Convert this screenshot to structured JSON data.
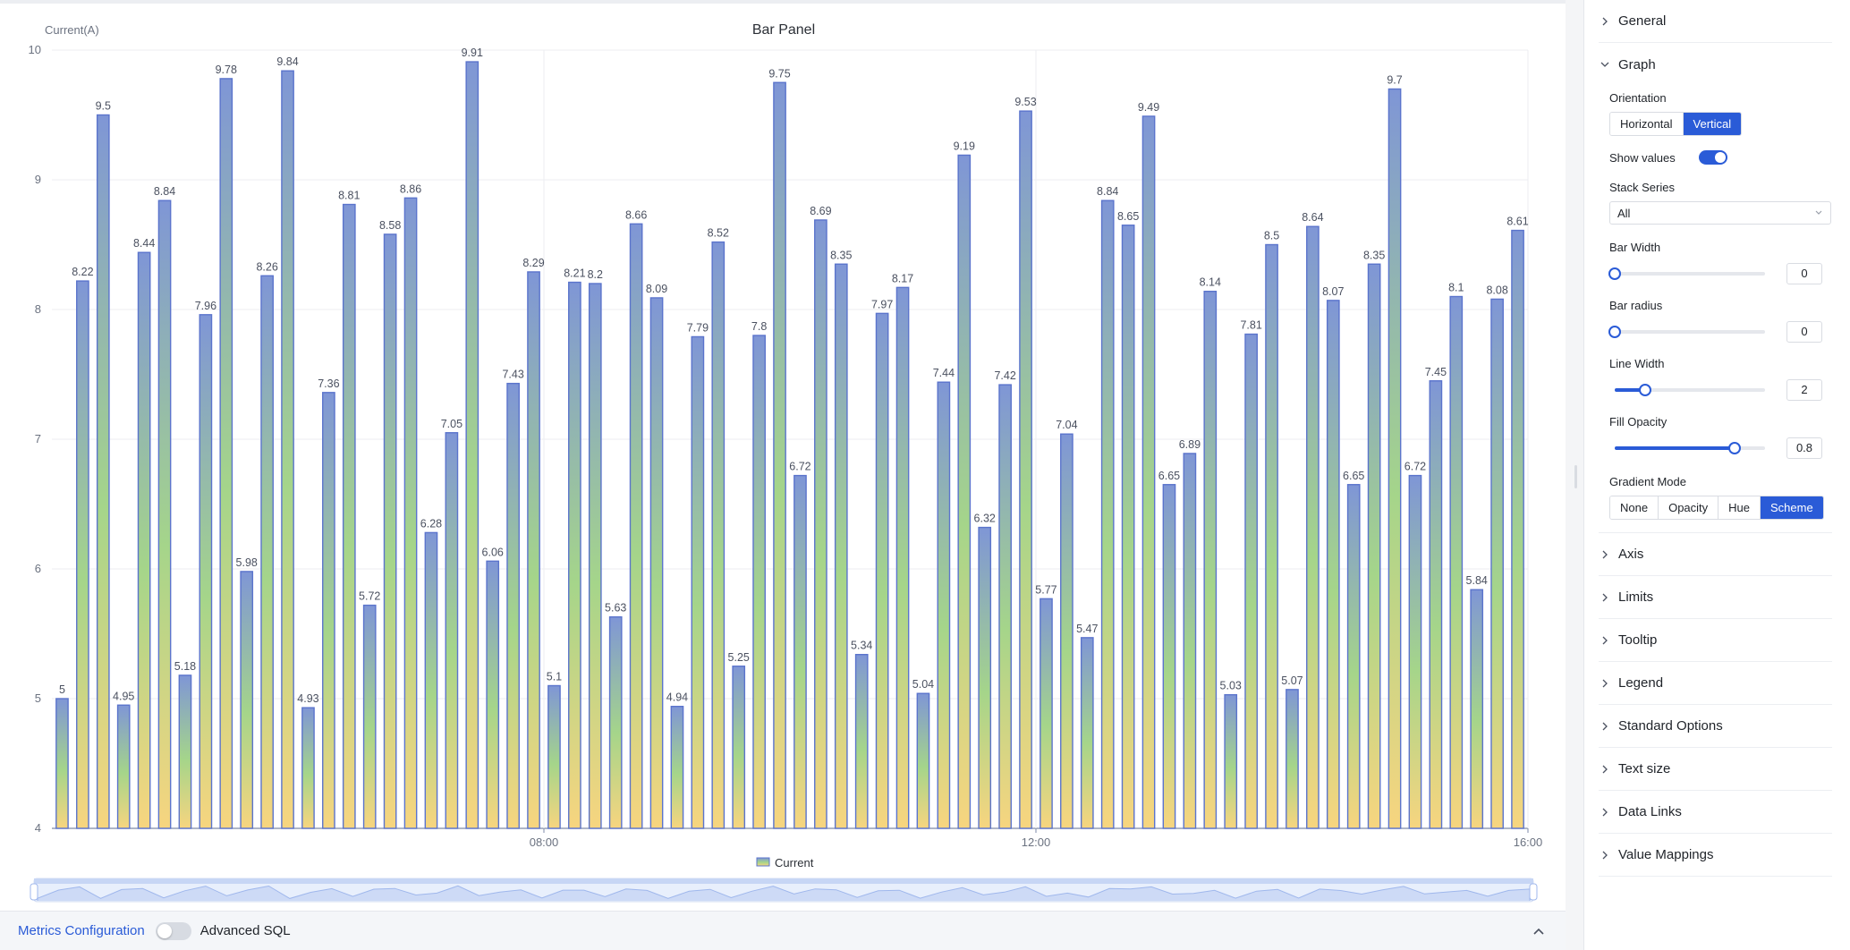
{
  "chart_panel": {
    "chart_data": {
      "type": "bar",
      "title": "Bar Panel",
      "ylabel": "Current(A)",
      "xlabel": "",
      "ylim": [
        4,
        10
      ],
      "y_ticks": [
        "4",
        "5",
        "6",
        "7",
        "8",
        "9",
        "10"
      ],
      "x_ticks": [
        {
          "label": "08:00",
          "bar_index": 24
        },
        {
          "label": "12:00",
          "bar_index": 48
        },
        {
          "label": "16:00",
          "bar_index": 72
        }
      ],
      "series": [
        {
          "name": "Current",
          "values": [
            5,
            8.22,
            9.5,
            4.95,
            8.44,
            8.84,
            5.18,
            7.96,
            9.78,
            5.98,
            8.26,
            9.84,
            4.93,
            7.36,
            8.81,
            5.72,
            8.58,
            8.86,
            6.28,
            7.05,
            9.91,
            6.06,
            7.43,
            8.29,
            5.1,
            8.21,
            8.2,
            5.63,
            8.66,
            8.09,
            4.94,
            7.79,
            8.52,
            5.25,
            7.8,
            9.75,
            6.72,
            8.69,
            8.35,
            5.34,
            7.97,
            8.17,
            5.04,
            7.44,
            9.19,
            6.32,
            7.42,
            9.53,
            5.77,
            7.04,
            5.47,
            8.84,
            8.65,
            9.49,
            6.65,
            6.89,
            8.14,
            5.03,
            7.81,
            8.5,
            5.07,
            8.64,
            8.07,
            6.65,
            8.35,
            9.7,
            6.72,
            7.45,
            8.1,
            5.84,
            8.08,
            8.61
          ]
        }
      ],
      "show_values": true,
      "grid": true,
      "legend_position": "bottom-center",
      "colors": {
        "bar_top": "#7f96d6",
        "bar_mid": "#a5d58a",
        "bar_bottom": "#f7d57f",
        "bar_stroke": "#5b74cc"
      }
    }
  },
  "bottom_bar": {
    "metrics_label": "Metrics Configuration",
    "sql_label": "Advanced SQL"
  },
  "settings": {
    "general": "General",
    "graph": {
      "title": "Graph",
      "orientation_label": "Orientation",
      "orientation_options": [
        "Horizontal",
        "Vertical"
      ],
      "orientation_selected": "Vertical",
      "show_values_label": "Show values",
      "show_values": true,
      "stack_series_label": "Stack Series",
      "stack_series_value": "All",
      "bar_width_label": "Bar Width",
      "bar_width_value": "0",
      "bar_width_fraction": 0,
      "bar_radius_label": "Bar radius",
      "bar_radius_value": "0",
      "bar_radius_fraction": 0,
      "line_width_label": "Line Width",
      "line_width_value": "2",
      "line_width_fraction": 0.2,
      "fill_opacity_label": "Fill Opacity",
      "fill_opacity_value": "0.8",
      "fill_opacity_fraction": 0.8,
      "gradient_mode_label": "Gradient Mode",
      "gradient_mode_options": [
        "None",
        "Opacity",
        "Hue",
        "Scheme"
      ],
      "gradient_mode_selected": "Scheme"
    },
    "sections": [
      "Axis",
      "Limits",
      "Tooltip",
      "Legend",
      "Standard Options",
      "Text size",
      "Data Links",
      "Value Mappings"
    ]
  }
}
